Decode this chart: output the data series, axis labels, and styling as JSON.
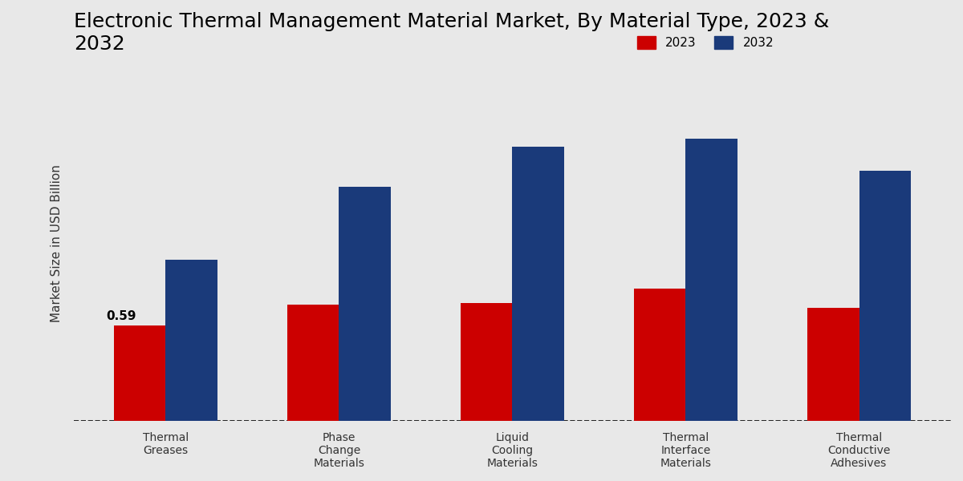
{
  "title": "Electronic Thermal Management Material Market, By Material Type, 2023 &\n2032",
  "ylabel": "Market Size in USD Billion",
  "categories": [
    "Thermal\nGreases",
    "Phase\nChange\nMaterials",
    "Liquid\nCooling\nMaterials",
    "Thermal\nInterface\nMaterials",
    "Thermal\nConductive\nAdhesives"
  ],
  "values_2023": [
    0.59,
    0.72,
    0.73,
    0.82,
    0.7
  ],
  "values_2032": [
    1.0,
    1.45,
    1.7,
    1.75,
    1.55
  ],
  "color_2023": "#cc0000",
  "color_2032": "#1a3a7a",
  "annotation_text": "0.59",
  "annotation_category": 0,
  "annotation_year": "2023",
  "legend_labels": [
    "2023",
    "2032"
  ],
  "background_color": "#e8e8e8",
  "title_fontsize": 18,
  "label_fontsize": 11,
  "tick_fontsize": 10,
  "bar_width": 0.3,
  "ylim": [
    0,
    2.2
  ]
}
